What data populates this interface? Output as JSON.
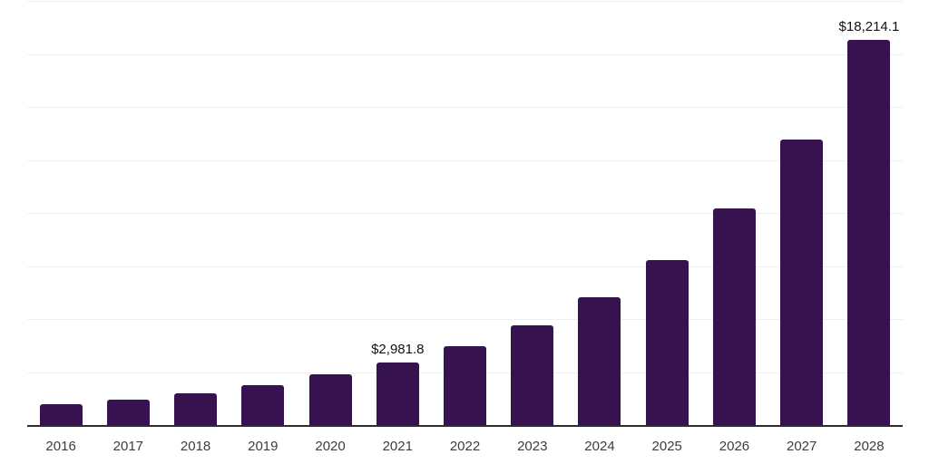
{
  "chart_data": {
    "type": "bar",
    "title": "",
    "xlabel": "",
    "ylabel": "",
    "categories": [
      "2016",
      "2017",
      "2018",
      "2019",
      "2020",
      "2021",
      "2022",
      "2023",
      "2024",
      "2025",
      "2026",
      "2027",
      "2028"
    ],
    "values": [
      1040,
      1250,
      1540,
      1920,
      2420,
      2981.8,
      3740,
      4760,
      6050,
      7840,
      10240,
      13520,
      18214.1
    ],
    "annotations": [
      {
        "category": "2021",
        "index": 5,
        "label": "$2,981.8"
      },
      {
        "category": "2028",
        "index": 12,
        "label": "$18,214.1"
      }
    ],
    "ylim": [
      0,
      20000
    ],
    "grid_interval": 2500,
    "grid": "horizontal",
    "y_axis_ticks_visible": false,
    "legend_position": "none",
    "colors": {
      "bar": "#36124e",
      "gridline": "#f0f0f0",
      "axis_line": "#2d2d2d",
      "value_label": "#111111",
      "tick_label": "#3d3d3d",
      "background": "#ffffff"
    }
  }
}
